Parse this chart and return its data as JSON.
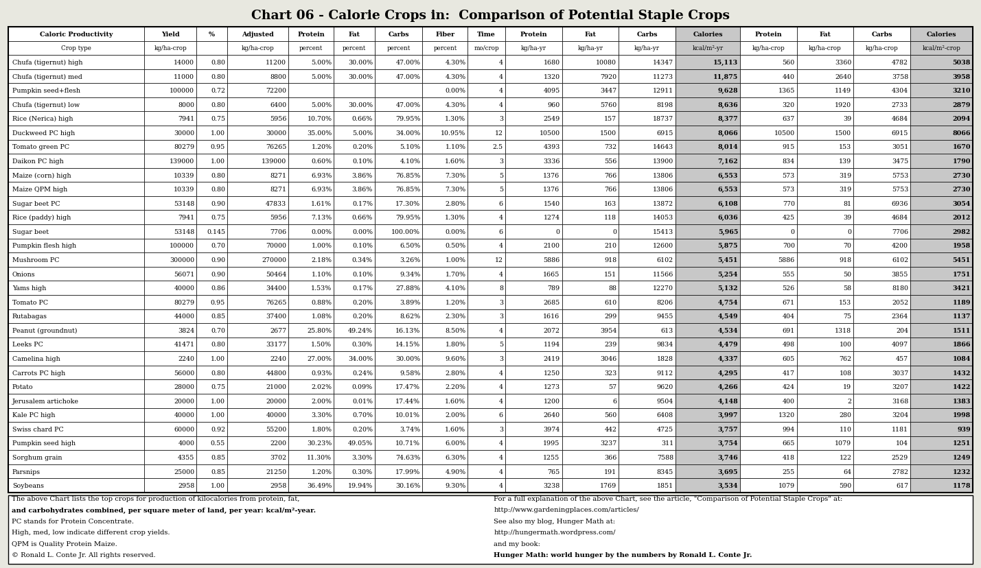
{
  "title": "Chart 06 - Calorie Crops in:  Comparison of Potential Staple Crops",
  "header_row1": [
    "Caloric Productivity",
    "Yield",
    "%",
    "Adjusted",
    "Protein",
    "Fat",
    "Carbs",
    "Fiber",
    "Time",
    "Protein",
    "Fat",
    "Carbs",
    "Calories",
    "Protein",
    "Fat",
    "Carbs",
    "Calories"
  ],
  "header_row2": [
    "Crop type",
    "kg/ha-crop",
    "",
    "kg/ha-crop",
    "percent",
    "percent",
    "percent",
    "percent",
    "mo/crop",
    "kg/ha-yr",
    "kg/ha-yr",
    "kg/ha-yr",
    "kcal/m²-yr",
    "kg/ha-crop",
    "kg/ha-crop",
    "kg/ha-crop",
    "kcal/m²-crop"
  ],
  "rows": [
    [
      "Chufa (tigernut) high",
      "14000",
      "0.80",
      "11200",
      "5.00%",
      "30.00%",
      "47.00%",
      "4.30%",
      "4",
      "1680",
      "10080",
      "14347",
      "15,113",
      "560",
      "3360",
      "4782",
      "5038"
    ],
    [
      "Chufa (tigernut) med",
      "11000",
      "0.80",
      "8800",
      "5.00%",
      "30.00%",
      "47.00%",
      "4.30%",
      "4",
      "1320",
      "7920",
      "11273",
      "11,875",
      "440",
      "2640",
      "3758",
      "3958"
    ],
    [
      "Pumpkin seed+flesh",
      "100000",
      "0.72",
      "72200",
      "",
      "",
      "",
      "0.00%",
      "4",
      "4095",
      "3447",
      "12911",
      "9,628",
      "1365",
      "1149",
      "4304",
      "3210"
    ],
    [
      "Chufa (tigernut) low",
      "8000",
      "0.80",
      "6400",
      "5.00%",
      "30.00%",
      "47.00%",
      "4.30%",
      "4",
      "960",
      "5760",
      "8198",
      "8,636",
      "320",
      "1920",
      "2733",
      "2879"
    ],
    [
      "Rice (Nerica) high",
      "7941",
      "0.75",
      "5956",
      "10.70%",
      "0.66%",
      "79.95%",
      "1.30%",
      "3",
      "2549",
      "157",
      "18737",
      "8,377",
      "637",
      "39",
      "4684",
      "2094"
    ],
    [
      "Duckweed PC high",
      "30000",
      "1.00",
      "30000",
      "35.00%",
      "5.00%",
      "34.00%",
      "10.95%",
      "12",
      "10500",
      "1500",
      "6915",
      "8,066",
      "10500",
      "1500",
      "6915",
      "8066"
    ],
    [
      "Tomato green PC",
      "80279",
      "0.95",
      "76265",
      "1.20%",
      "0.20%",
      "5.10%",
      "1.10%",
      "2.5",
      "4393",
      "732",
      "14643",
      "8,014",
      "915",
      "153",
      "3051",
      "1670"
    ],
    [
      "Daikon PC high",
      "139000",
      "1.00",
      "139000",
      "0.60%",
      "0.10%",
      "4.10%",
      "1.60%",
      "3",
      "3336",
      "556",
      "13900",
      "7,162",
      "834",
      "139",
      "3475",
      "1790"
    ],
    [
      "Maize (corn) high",
      "10339",
      "0.80",
      "8271",
      "6.93%",
      "3.86%",
      "76.85%",
      "7.30%",
      "5",
      "1376",
      "766",
      "13806",
      "6,553",
      "573",
      "319",
      "5753",
      "2730"
    ],
    [
      "Maize QPM high",
      "10339",
      "0.80",
      "8271",
      "6.93%",
      "3.86%",
      "76.85%",
      "7.30%",
      "5",
      "1376",
      "766",
      "13806",
      "6,553",
      "573",
      "319",
      "5753",
      "2730"
    ],
    [
      "Sugar beet PC",
      "53148",
      "0.90",
      "47833",
      "1.61%",
      "0.17%",
      "17.30%",
      "2.80%",
      "6",
      "1540",
      "163",
      "13872",
      "6,108",
      "770",
      "81",
      "6936",
      "3054"
    ],
    [
      "Rice (paddy) high",
      "7941",
      "0.75",
      "5956",
      "7.13%",
      "0.66%",
      "79.95%",
      "1.30%",
      "4",
      "1274",
      "118",
      "14053",
      "6,036",
      "425",
      "39",
      "4684",
      "2012"
    ],
    [
      "Sugar beet",
      "53148",
      "0.145",
      "7706",
      "0.00%",
      "0.00%",
      "100.00%",
      "0.00%",
      "6",
      "0",
      "0",
      "15413",
      "5,965",
      "0",
      "0",
      "7706",
      "2982"
    ],
    [
      "Pumpkin flesh high",
      "100000",
      "0.70",
      "70000",
      "1.00%",
      "0.10%",
      "6.50%",
      "0.50%",
      "4",
      "2100",
      "210",
      "12600",
      "5,875",
      "700",
      "70",
      "4200",
      "1958"
    ],
    [
      "Mushroom PC",
      "300000",
      "0.90",
      "270000",
      "2.18%",
      "0.34%",
      "3.26%",
      "1.00%",
      "12",
      "5886",
      "918",
      "6102",
      "5,451",
      "5886",
      "918",
      "6102",
      "5451"
    ],
    [
      "Onions",
      "56071",
      "0.90",
      "50464",
      "1.10%",
      "0.10%",
      "9.34%",
      "1.70%",
      "4",
      "1665",
      "151",
      "11566",
      "5,254",
      "555",
      "50",
      "3855",
      "1751"
    ],
    [
      "Yams high",
      "40000",
      "0.86",
      "34400",
      "1.53%",
      "0.17%",
      "27.88%",
      "4.10%",
      "8",
      "789",
      "88",
      "12270",
      "5,132",
      "526",
      "58",
      "8180",
      "3421"
    ],
    [
      "Tomato PC",
      "80279",
      "0.95",
      "76265",
      "0.88%",
      "0.20%",
      "3.89%",
      "1.20%",
      "3",
      "2685",
      "610",
      "8206",
      "4,754",
      "671",
      "153",
      "2052",
      "1189"
    ],
    [
      "Rutabagas",
      "44000",
      "0.85",
      "37400",
      "1.08%",
      "0.20%",
      "8.62%",
      "2.30%",
      "3",
      "1616",
      "299",
      "9455",
      "4,549",
      "404",
      "75",
      "2364",
      "1137"
    ],
    [
      "Peanut (groundnut)",
      "3824",
      "0.70",
      "2677",
      "25.80%",
      "49.24%",
      "16.13%",
      "8.50%",
      "4",
      "2072",
      "3954",
      "613",
      "4,534",
      "691",
      "1318",
      "204",
      "1511"
    ],
    [
      "Leeks PC",
      "41471",
      "0.80",
      "33177",
      "1.50%",
      "0.30%",
      "14.15%",
      "1.80%",
      "5",
      "1194",
      "239",
      "9834",
      "4,479",
      "498",
      "100",
      "4097",
      "1866"
    ],
    [
      "Camelina high",
      "2240",
      "1.00",
      "2240",
      "27.00%",
      "34.00%",
      "30.00%",
      "9.60%",
      "3",
      "2419",
      "3046",
      "1828",
      "4,337",
      "605",
      "762",
      "457",
      "1084"
    ],
    [
      "Carrots PC high",
      "56000",
      "0.80",
      "44800",
      "0.93%",
      "0.24%",
      "9.58%",
      "2.80%",
      "4",
      "1250",
      "323",
      "9112",
      "4,295",
      "417",
      "108",
      "3037",
      "1432"
    ],
    [
      "Potato",
      "28000",
      "0.75",
      "21000",
      "2.02%",
      "0.09%",
      "17.47%",
      "2.20%",
      "4",
      "1273",
      "57",
      "9620",
      "4,266",
      "424",
      "19",
      "3207",
      "1422"
    ],
    [
      "Jerusalem artichoke",
      "20000",
      "1.00",
      "20000",
      "2.00%",
      "0.01%",
      "17.44%",
      "1.60%",
      "4",
      "1200",
      "6",
      "9504",
      "4,148",
      "400",
      "2",
      "3168",
      "1383"
    ],
    [
      "Kale PC high",
      "40000",
      "1.00",
      "40000",
      "3.30%",
      "0.70%",
      "10.01%",
      "2.00%",
      "6",
      "2640",
      "560",
      "6408",
      "3,997",
      "1320",
      "280",
      "3204",
      "1998"
    ],
    [
      "Swiss chard PC",
      "60000",
      "0.92",
      "55200",
      "1.80%",
      "0.20%",
      "3.74%",
      "1.60%",
      "3",
      "3974",
      "442",
      "4725",
      "3,757",
      "994",
      "110",
      "1181",
      "939"
    ],
    [
      "Pumpkin seed high",
      "4000",
      "0.55",
      "2200",
      "30.23%",
      "49.05%",
      "10.71%",
      "6.00%",
      "4",
      "1995",
      "3237",
      "311",
      "3,754",
      "665",
      "1079",
      "104",
      "1251"
    ],
    [
      "Sorghum grain",
      "4355",
      "0.85",
      "3702",
      "11.30%",
      "3.30%",
      "74.63%",
      "6.30%",
      "4",
      "1255",
      "366",
      "7588",
      "3,746",
      "418",
      "122",
      "2529",
      "1249"
    ],
    [
      "Parsnips",
      "25000",
      "0.85",
      "21250",
      "1.20%",
      "0.30%",
      "17.99%",
      "4.90%",
      "4",
      "765",
      "191",
      "8345",
      "3,695",
      "255",
      "64",
      "2782",
      "1232"
    ],
    [
      "Soybeans",
      "2958",
      "1.00",
      "2958",
      "36.49%",
      "19.94%",
      "30.16%",
      "9.30%",
      "4",
      "3238",
      "1769",
      "1851",
      "3,534",
      "1079",
      "590",
      "617",
      "1178"
    ]
  ],
  "cal_col_indices": [
    12,
    16
  ],
  "cal_col_bg": "#c8c8c8",
  "white": "#ffffff",
  "bg_color": "#e8e8e0",
  "footer_left": [
    "The above Chart lists the top crops for production of kilocalories from protein, fat,",
    "and carbohydrates combined, per square meter of land, per year: kcal/m²-year.",
    "PC stands for Protein Concentrate.",
    "High, med, low indicate different crop yields.",
    "QPM is Quality Protein Maize.",
    "© Ronald L. Conte Jr. All rights reserved."
  ],
  "footer_left_bold": [
    false,
    true,
    false,
    false,
    false,
    false
  ],
  "footer_right": [
    "For a full explanation of the above Chart, see the article, \"Comparison of Potential Staple Crops\" at:",
    "http://www.gardeningplaces.com/articles/",
    "See also my blog, Hunger Math at:",
    "http://hungermath.wordpress.com/",
    "and my book:",
    "Hunger Math: world hunger by the numbers by Ronald L. Conte Jr."
  ],
  "footer_right_bold": [
    false,
    false,
    false,
    false,
    false,
    true
  ]
}
